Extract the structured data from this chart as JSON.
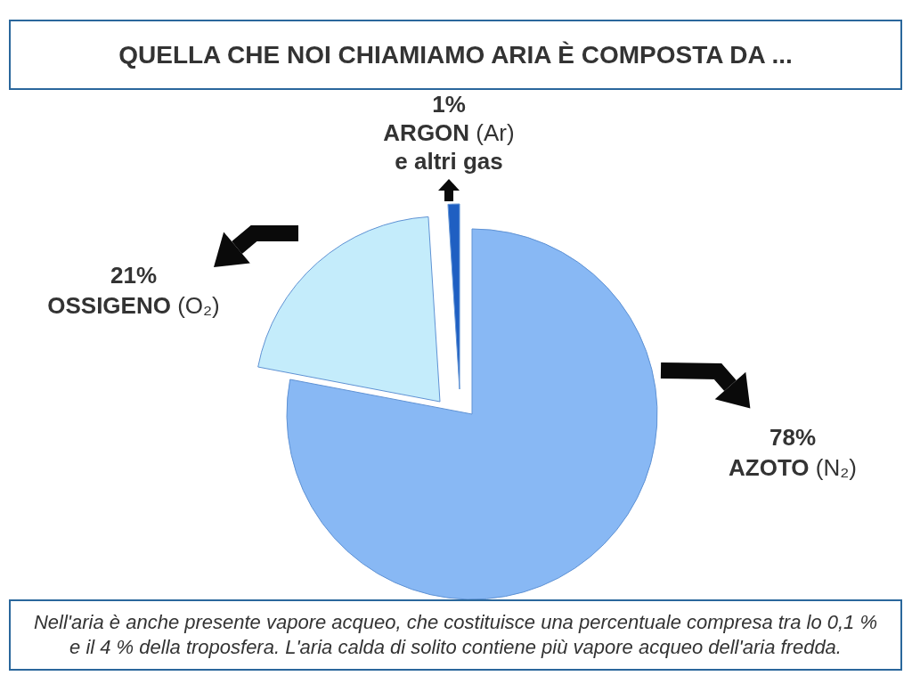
{
  "chart_data": {
    "type": "pie",
    "title": "QUELLA CHE NOI CHIAMIAMO ARIA È COMPOSTA DA ...",
    "categories": [
      "AZOTO (N₂)",
      "OSSIGENO (O₂)",
      "ARGON (Ar) e altri gas"
    ],
    "values": [
      78,
      21,
      1
    ],
    "colors": [
      "#88b8f4",
      "#c4ecfb",
      "#1f5fc2"
    ],
    "value_labels": [
      "78%",
      "21%",
      "1%"
    ],
    "annotations": [
      "Nell'aria è anche presente vapore acqueo, che costituisce una percentuale compresa tra lo 0,1 % e il 4 % della troposfera. L'aria calda di solito contiene più vapore acqueo dell'aria fredda."
    ]
  }
}
